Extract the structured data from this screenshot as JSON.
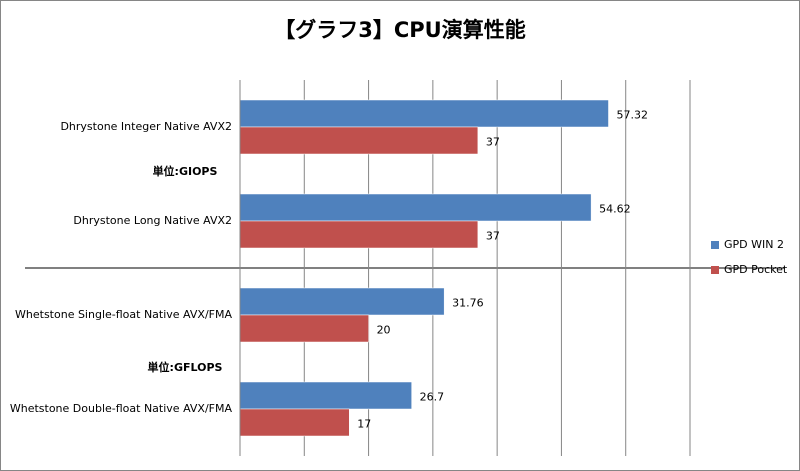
{
  "chart_data": {
    "type": "hbar",
    "title": "【グラフ3】CPU演算性能",
    "categories": [
      "Dhrystone Integer Native AVX2",
      "Dhrystone Long Native AVX2",
      "Whetstone Single-float Native AVX/FMA",
      "Whetstone Double-float Native AVX/FMA"
    ],
    "series": [
      {
        "name": "GPD WIN 2",
        "color": "#4f81bd",
        "values": [
          57.32,
          54.62,
          31.76,
          26.7
        ]
      },
      {
        "name": "GPD Pocket",
        "color": "#c0504d",
        "values": [
          37,
          37,
          20,
          17
        ]
      }
    ],
    "annotations": [
      "単位:GIOPS",
      "単位:GFLOPS"
    ],
    "xlim": [
      0,
      70
    ],
    "xticks": [
      0,
      10,
      20,
      30,
      40,
      50,
      60,
      70
    ],
    "grid": true,
    "legend": "right"
  }
}
